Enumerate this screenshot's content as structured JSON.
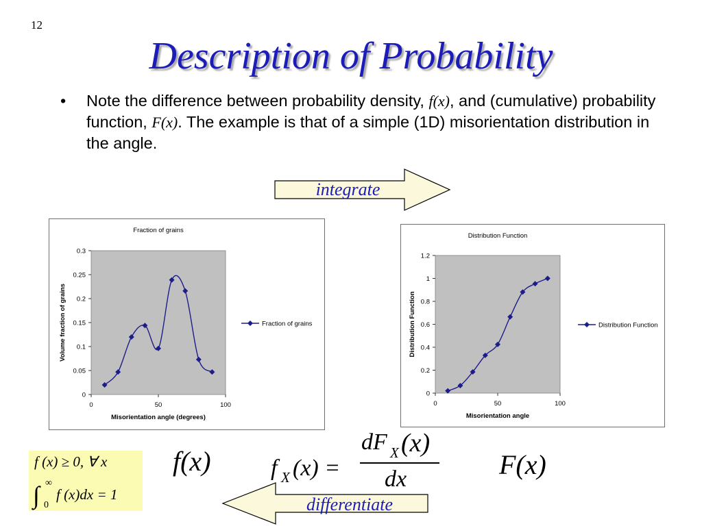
{
  "slide": {
    "number": "12",
    "title": "Description of Probability"
  },
  "bullet": {
    "symbol": "•",
    "part1": "Note the difference between probability density, ",
    "density_symbol": "f(x)",
    "part2": ", and (cumulative) probability function, ",
    "cumulative_symbol": "F(x)",
    "part3": ".  The example is that of a simple (1D) misorientation distribution in the angle."
  },
  "arrows": {
    "integrate_label": "integrate",
    "differentiate_label": "differentiate"
  },
  "conditions": {
    "line1": "f (x) ≥ 0,   ∀ x",
    "integral_upper": "∞",
    "integral_lower": "0",
    "line2": "f (x)dx = 1"
  },
  "formula": {
    "left_label": "f(x)",
    "lhs": "f",
    "lhs_sub": "X",
    "lhs_arg": "(x) =",
    "numerator": "dF",
    "numerator_sub": "X",
    "numerator_arg": "(x)",
    "denominator": "dx",
    "right_label": "F(x)"
  },
  "chart_data": [
    {
      "type": "line",
      "title": "Fraction of grains",
      "xlabel": "Misorientation   angle   (degrees)",
      "ylabel": "Volume   fraction   of   grains",
      "xlim": [
        0,
        100
      ],
      "ylim": [
        0,
        0.3
      ],
      "xticks": [
        "0",
        "50",
        "100"
      ],
      "yticks": [
        "0",
        "0.05",
        "0.1",
        "0.15",
        "0.2",
        "0.25",
        "0.3"
      ],
      "grid": false,
      "legend_position": "right",
      "colors": {
        "series": "#1c1c8a",
        "plot_bg": "#c0c0c0"
      },
      "series": [
        {
          "name": "Fraction of grains",
          "x": [
            10,
            20,
            30,
            40,
            50,
            60,
            70,
            80,
            90
          ],
          "y": [
            0.02,
            0.047,
            0.12,
            0.144,
            0.096,
            0.239,
            0.216,
            0.073,
            0.047
          ]
        }
      ]
    },
    {
      "type": "line",
      "title": "Distribution Function",
      "xlabel": "Misorientation    angle",
      "ylabel": "Distribution   Function",
      "xlim": [
        0,
        100
      ],
      "ylim": [
        0,
        1.2
      ],
      "xticks": [
        "0",
        "50",
        "100"
      ],
      "yticks": [
        "0",
        "0.2",
        "0.4",
        "0.6",
        "0.8",
        "1",
        "1.2"
      ],
      "grid": false,
      "legend_position": "right",
      "colors": {
        "series": "#1c1c8a",
        "plot_bg": "#c0c0c0"
      },
      "series": [
        {
          "name": "Distribution Function",
          "x": [
            10,
            20,
            30,
            40,
            50,
            60,
            70,
            80,
            90
          ],
          "y": [
            0.02,
            0.066,
            0.185,
            0.329,
            0.425,
            0.665,
            0.881,
            0.954,
            1.0
          ]
        }
      ]
    }
  ]
}
